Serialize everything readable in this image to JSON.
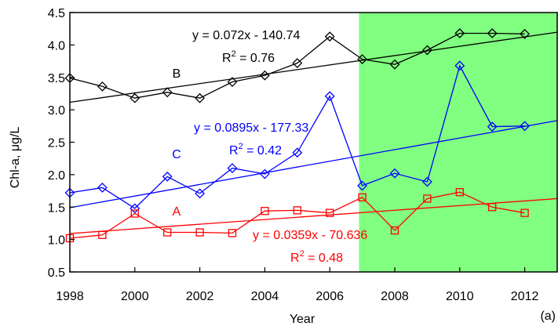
{
  "chart_data": {
    "type": "line",
    "xlabel": "Year",
    "ylabel": "Chl-a, μg/L",
    "panel_label": "(a)",
    "xlim": [
      1998,
      2013
    ],
    "ylim": [
      0.5,
      4.5
    ],
    "x_ticks": [
      1998,
      2000,
      2002,
      2004,
      2006,
      2008,
      2010,
      2012
    ],
    "y_ticks": [
      "0.5",
      "1.0",
      "1.5",
      "2.0",
      "2.5",
      "3.0",
      "3.5",
      "4.0",
      "4.5"
    ],
    "highlight_region": {
      "x_from": 2006.9,
      "x_to": 2013,
      "color": "#80ff80"
    },
    "x": [
      1998,
      1999,
      2000,
      2001,
      2002,
      2003,
      2004,
      2005,
      2006,
      2007,
      2008,
      2009,
      2010,
      2011,
      2012
    ],
    "series": [
      {
        "name": "B",
        "color": "#000000",
        "marker": "diamond",
        "values": [
          3.49,
          3.36,
          3.18,
          3.27,
          3.18,
          3.43,
          3.53,
          3.72,
          4.13,
          3.78,
          3.7,
          3.92,
          4.18,
          4.18,
          4.17
        ],
        "trend": {
          "slope": 0.072,
          "intercept": -140.74
        },
        "equation": "y = 0.072x - 140.74",
        "r2_label": "R",
        "r2_sup": "2",
        "r2_value": " = 0.76"
      },
      {
        "name": "C",
        "color": "#0000ff",
        "marker": "diamond",
        "values": [
          1.72,
          1.8,
          1.48,
          1.97,
          1.71,
          2.1,
          2.01,
          2.34,
          3.21,
          1.83,
          2.02,
          1.89,
          3.68,
          2.74,
          2.75
        ],
        "trend": {
          "slope": 0.0895,
          "intercept": -177.33
        },
        "equation": "y = 0.0895x - 177.33",
        "r2_label": "R",
        "r2_sup": "2",
        "r2_value": " = 0.42"
      },
      {
        "name": "A",
        "color": "#ff0000",
        "marker": "square",
        "values": [
          1.02,
          1.07,
          1.4,
          1.11,
          1.11,
          1.1,
          1.44,
          1.45,
          1.41,
          1.65,
          1.14,
          1.63,
          1.73,
          1.5,
          1.41
        ],
        "trend": {
          "slope": 0.0359,
          "intercept": -70.636
        },
        "equation": "y = 0.0359x - 70.636",
        "r2_label": "R",
        "r2_sup": "2",
        "r2_value": " = 0.48"
      }
    ]
  }
}
